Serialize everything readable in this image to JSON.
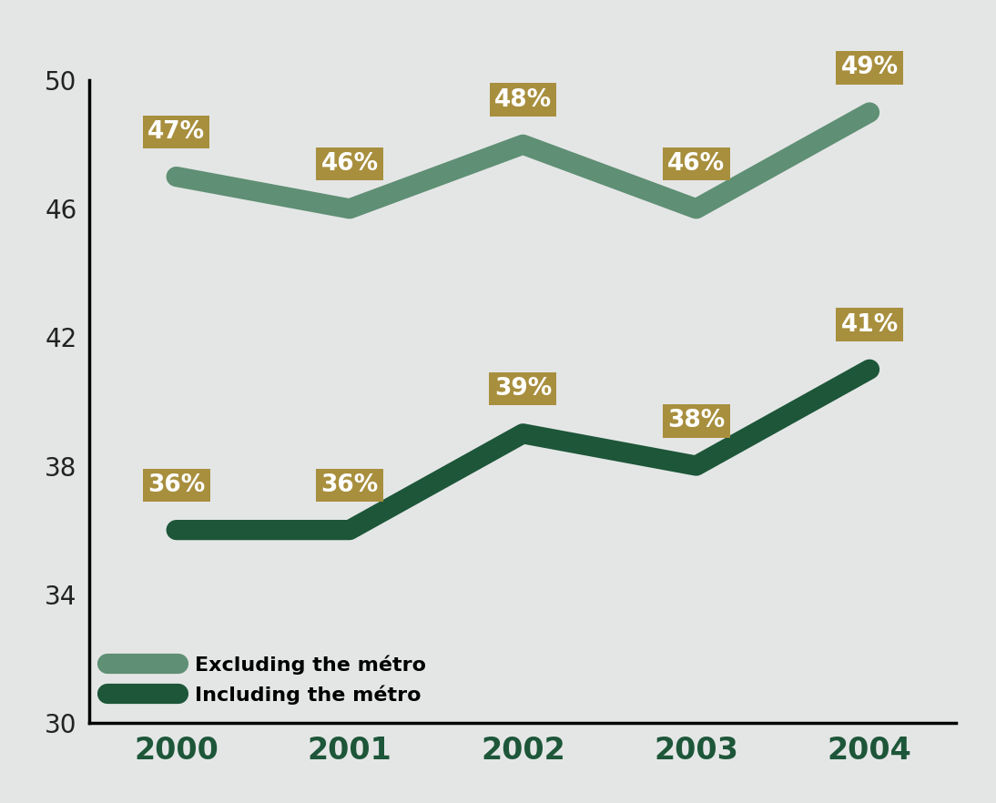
{
  "chart_data": {
    "type": "line",
    "categories": [
      "2000",
      "2001",
      "2002",
      "2003",
      "2004"
    ],
    "series": [
      {
        "name": "Excluding the métro",
        "color": "#5f8f74",
        "line_style": "solid",
        "values": [
          47,
          46,
          48,
          46,
          49
        ],
        "value_labels": [
          "47%",
          "46%",
          "48%",
          "46%",
          "49%"
        ]
      },
      {
        "name": "Including the métro",
        "color": "#1d5639",
        "line_style": "solid",
        "values": [
          36,
          36,
          39,
          38,
          41
        ],
        "value_labels": [
          "36%",
          "36%",
          "39%",
          "38%",
          "41%"
        ]
      }
    ],
    "ylim": [
      30,
      50
    ],
    "yticks": [
      30,
      34,
      38,
      42,
      46,
      50
    ],
    "data_labels": true,
    "legend": "lower left",
    "grid": false
  }
}
